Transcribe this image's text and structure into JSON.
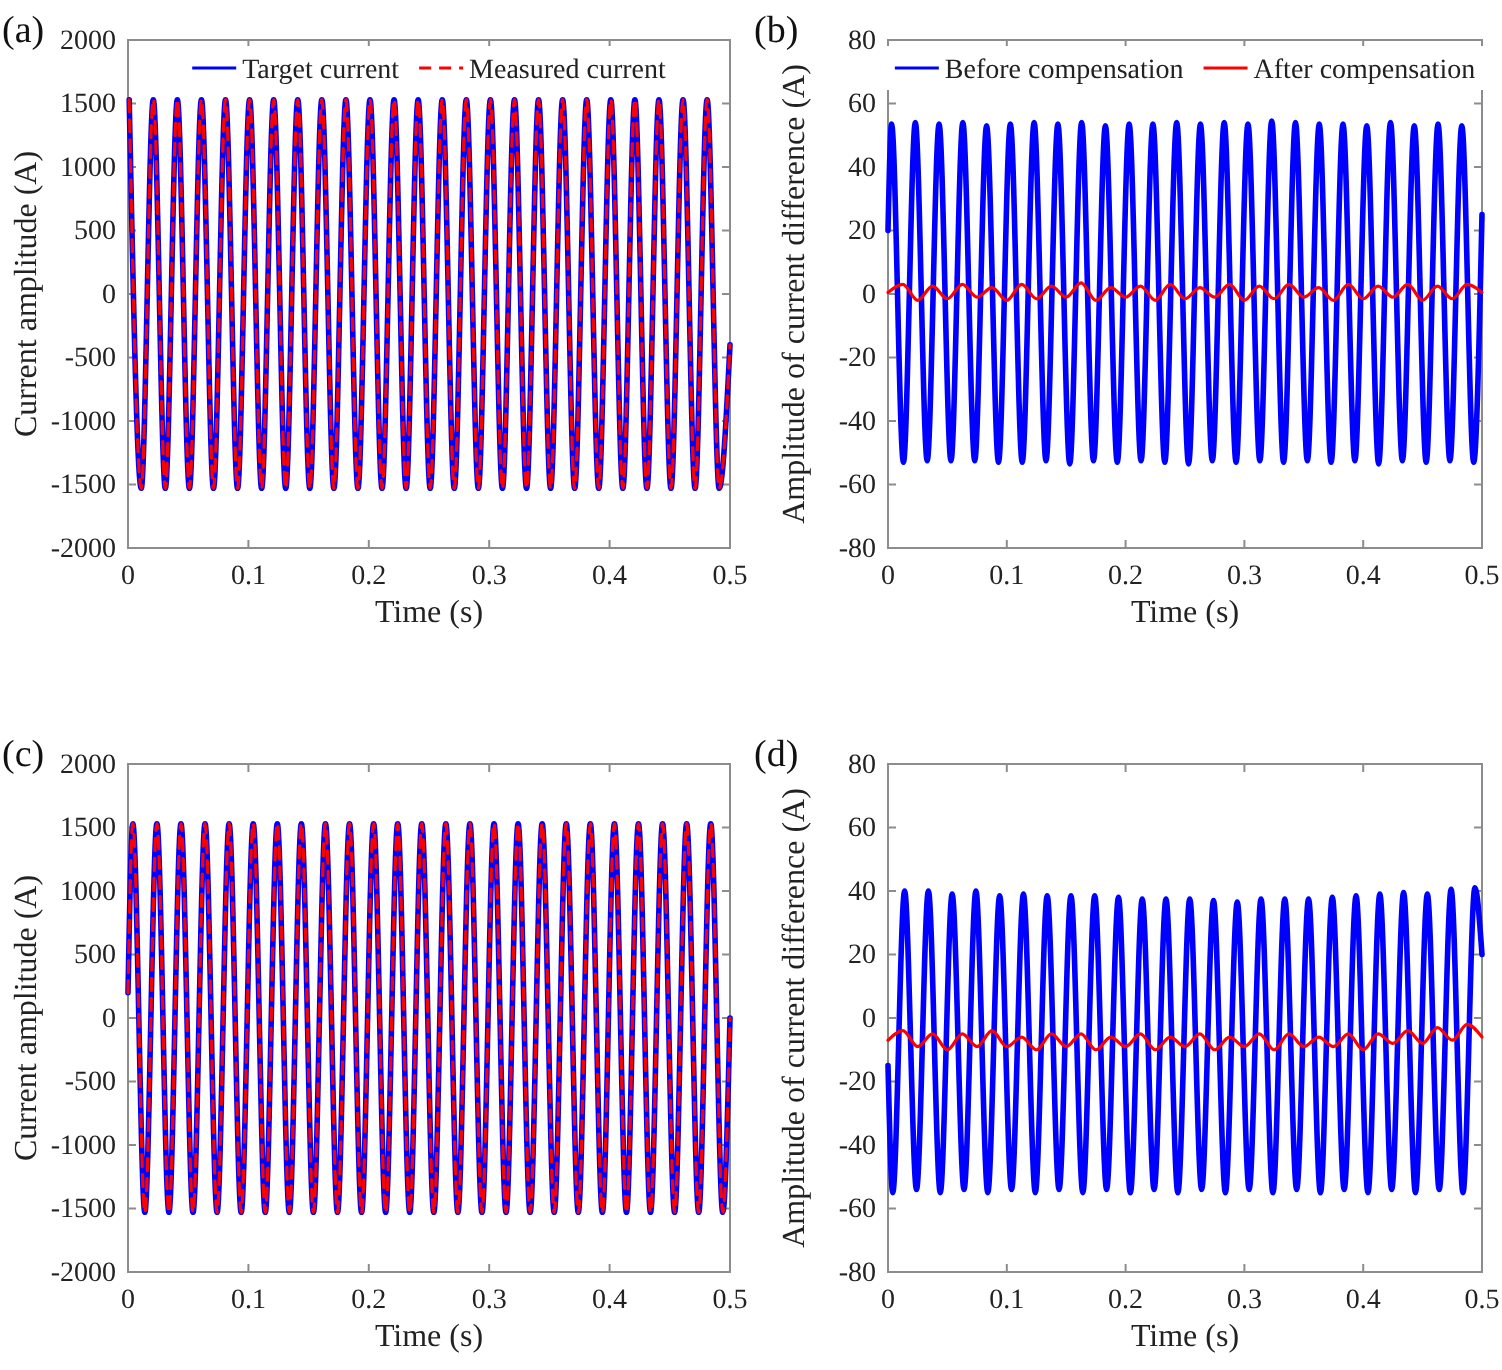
{
  "chart_data": [
    {
      "type": "line",
      "title": "(a)",
      "xlabel": "Time (s)",
      "ylabel": "Current amplitude (A)",
      "xlim": [
        0,
        0.5
      ],
      "xticks": [
        0,
        0.1,
        0.2,
        0.3,
        0.4,
        0.5
      ],
      "ylim": [
        -2000,
        2000
      ],
      "yticks": [
        -2000,
        -1500,
        -1000,
        -500,
        0,
        500,
        1000,
        1500,
        2000
      ],
      "legend": "top",
      "grid": false,
      "series": [
        {
          "name": "Target current",
          "color": "#0000ff",
          "line_style": "solid",
          "x": [
            0.001,
            0.011,
            0.021,
            0.031,
            0.041,
            0.051,
            0.061,
            0.071,
            0.081,
            0.091,
            0.101,
            0.111,
            0.121,
            0.131,
            0.141,
            0.151,
            0.161,
            0.171,
            0.181,
            0.191,
            0.201,
            0.211,
            0.221,
            0.231,
            0.241,
            0.251,
            0.261,
            0.271,
            0.281,
            0.291,
            0.301,
            0.311,
            0.321,
            0.331,
            0.341,
            0.351,
            0.361,
            0.371,
            0.381,
            0.391,
            0.401,
            0.411,
            0.421,
            0.431,
            0.441,
            0.451,
            0.461,
            0.471,
            0.481,
            0.491,
            0.5
          ],
          "values": [
            1530,
            -1530,
            1530,
            -1530,
            1530,
            -1530,
            1530,
            -1530,
            1530,
            -1530,
            1530,
            -1530,
            1530,
            -1530,
            1530,
            -1530,
            1530,
            -1530,
            1530,
            -1530,
            1530,
            -1530,
            1530,
            -1530,
            1530,
            -1530,
            1530,
            -1530,
            1530,
            -1530,
            1530,
            -1530,
            1530,
            -1530,
            1530,
            -1530,
            1530,
            -1530,
            1530,
            -1530,
            1530,
            -1530,
            1530,
            -1530,
            1530,
            -1530,
            1530,
            -1530,
            1530,
            -1530,
            -400
          ]
        },
        {
          "name": "Measured current",
          "color": "#ff0000",
          "line_style": "dashed",
          "x": [
            0.001,
            0.011,
            0.021,
            0.031,
            0.041,
            0.051,
            0.061,
            0.071,
            0.081,
            0.091,
            0.101,
            0.111,
            0.121,
            0.131,
            0.141,
            0.151,
            0.161,
            0.171,
            0.181,
            0.191,
            0.201,
            0.211,
            0.221,
            0.231,
            0.241,
            0.251,
            0.261,
            0.271,
            0.281,
            0.291,
            0.301,
            0.311,
            0.321,
            0.331,
            0.341,
            0.351,
            0.361,
            0.371,
            0.381,
            0.391,
            0.401,
            0.411,
            0.421,
            0.431,
            0.441,
            0.451,
            0.461,
            0.471,
            0.481,
            0.491,
            0.5
          ],
          "values": [
            1530,
            -1530,
            1530,
            -1530,
            1530,
            -1530,
            1530,
            -1530,
            1530,
            -1530,
            1530,
            -1530,
            1530,
            -1530,
            1530,
            -1530,
            1530,
            -1530,
            1530,
            -1530,
            1530,
            -1530,
            1530,
            -1530,
            1530,
            -1530,
            1530,
            -1530,
            1530,
            -1530,
            1530,
            -1530,
            1530,
            -1530,
            1530,
            -1530,
            1530,
            -1530,
            1530,
            -1530,
            1530,
            -1530,
            1530,
            -1530,
            1530,
            -1530,
            1530,
            -1530,
            1530,
            -1530,
            -400
          ]
        }
      ]
    },
    {
      "type": "line",
      "title": "(b)",
      "xlabel": "Time (s)",
      "ylabel": "Amplitude of current difference (A)",
      "xlim": [
        0,
        0.5
      ],
      "xticks": [
        0,
        0.1,
        0.2,
        0.3,
        0.4,
        0.5
      ],
      "ylim": [
        -80,
        80
      ],
      "yticks": [
        -80,
        -60,
        -40,
        -20,
        0,
        20,
        40,
        60,
        80
      ],
      "legend": "top",
      "grid": false,
      "series": [
        {
          "name": "Before compensation",
          "color": "#0000ff",
          "line_style": "solid",
          "x": [
            0,
            0.003,
            0.013,
            0.023,
            0.033,
            0.043,
            0.053,
            0.063,
            0.073,
            0.083,
            0.093,
            0.103,
            0.113,
            0.123,
            0.133,
            0.143,
            0.153,
            0.163,
            0.173,
            0.183,
            0.193,
            0.203,
            0.213,
            0.223,
            0.233,
            0.243,
            0.253,
            0.263,
            0.273,
            0.283,
            0.293,
            0.303,
            0.313,
            0.323,
            0.333,
            0.343,
            0.353,
            0.363,
            0.373,
            0.383,
            0.393,
            0.403,
            0.413,
            0.423,
            0.433,
            0.443,
            0.453,
            0.463,
            0.473,
            0.483,
            0.493,
            0.5
          ],
          "values": [
            20,
            53.5,
            -53,
            54,
            -52.5,
            53.5,
            -52.5,
            54,
            -52.5,
            53,
            -53,
            53.5,
            -53,
            54,
            -52.5,
            53.5,
            -53.5,
            54,
            -52.5,
            53,
            -53,
            53.5,
            -52.5,
            53.5,
            -53,
            54,
            -53.5,
            53.5,
            -52.5,
            54,
            -53,
            53.5,
            -52.5,
            54.5,
            -53,
            54,
            -52.5,
            53.5,
            -53,
            53.5,
            -52.5,
            53,
            -53.5,
            54,
            -52.5,
            53,
            -53,
            53.5,
            -52.5,
            53,
            -53,
            25
          ]
        },
        {
          "name": "After compensation",
          "color": "#ff0000",
          "line_style": "solid",
          "x": [
            0,
            0.0125,
            0.025,
            0.0375,
            0.05,
            0.0625,
            0.075,
            0.0875,
            0.1,
            0.1125,
            0.125,
            0.1375,
            0.15,
            0.1625,
            0.175,
            0.1875,
            0.2,
            0.2125,
            0.225,
            0.2375,
            0.25,
            0.2625,
            0.275,
            0.2875,
            0.3,
            0.3125,
            0.325,
            0.3375,
            0.35,
            0.3625,
            0.375,
            0.3875,
            0.4,
            0.4125,
            0.425,
            0.4375,
            0.45,
            0.4625,
            0.475,
            0.4875,
            0.5
          ],
          "values": [
            0.5,
            3,
            -2,
            2.5,
            -1.5,
            3,
            -1,
            2,
            -2,
            3,
            -1.5,
            2.5,
            -1,
            3.5,
            -2,
            2,
            -1,
            2.5,
            -2,
            3,
            -1.5,
            2,
            -1,
            3,
            -2,
            2.5,
            -1.5,
            3,
            -1,
            2,
            -2,
            3,
            -1.5,
            2.5,
            -1,
            3,
            -2,
            2.5,
            -1.5,
            3,
            0.5
          ]
        }
      ]
    },
    {
      "type": "line",
      "title": "(c)",
      "xlabel": "Time (s)",
      "ylabel": "Current amplitude (A)",
      "xlim": [
        0,
        0.5
      ],
      "xticks": [
        0,
        0.1,
        0.2,
        0.3,
        0.4,
        0.5
      ],
      "ylim": [
        -2000,
        2000
      ],
      "yticks": [
        -2000,
        -1500,
        -1000,
        -500,
        0,
        500,
        1000,
        1500,
        2000
      ],
      "legend": false,
      "grid": false,
      "series": [
        {
          "color": "#0000ff",
          "line_style": "solid",
          "x": [
            0,
            0.004,
            0.014,
            0.024,
            0.034,
            0.044,
            0.054,
            0.064,
            0.074,
            0.084,
            0.094,
            0.104,
            0.114,
            0.124,
            0.134,
            0.144,
            0.154,
            0.164,
            0.174,
            0.184,
            0.194,
            0.204,
            0.214,
            0.224,
            0.234,
            0.244,
            0.254,
            0.264,
            0.274,
            0.284,
            0.294,
            0.304,
            0.314,
            0.324,
            0.334,
            0.344,
            0.354,
            0.364,
            0.374,
            0.384,
            0.394,
            0.404,
            0.414,
            0.424,
            0.434,
            0.444,
            0.454,
            0.464,
            0.474,
            0.484,
            0.494,
            0.5
          ],
          "values": [
            200,
            1530,
            -1530,
            1530,
            -1530,
            1530,
            -1530,
            1530,
            -1530,
            1530,
            -1530,
            1530,
            -1530,
            1530,
            -1530,
            1530,
            -1530,
            1530,
            -1530,
            1530,
            -1530,
            1530,
            -1530,
            1530,
            -1530,
            1530,
            -1530,
            1530,
            -1530,
            1530,
            -1530,
            1530,
            -1530,
            1530,
            -1530,
            1530,
            -1530,
            1530,
            -1530,
            1530,
            -1530,
            1530,
            -1530,
            1530,
            -1530,
            1530,
            -1530,
            1530,
            -1530,
            1530,
            -1530,
            0
          ]
        },
        {
          "color": "#ff0000",
          "line_style": "dashed",
          "x": [
            0,
            0.004,
            0.014,
            0.024,
            0.034,
            0.044,
            0.054,
            0.064,
            0.074,
            0.084,
            0.094,
            0.104,
            0.114,
            0.124,
            0.134,
            0.144,
            0.154,
            0.164,
            0.174,
            0.184,
            0.194,
            0.204,
            0.214,
            0.224,
            0.234,
            0.244,
            0.254,
            0.264,
            0.274,
            0.284,
            0.294,
            0.304,
            0.314,
            0.324,
            0.334,
            0.344,
            0.354,
            0.364,
            0.374,
            0.384,
            0.394,
            0.404,
            0.414,
            0.424,
            0.434,
            0.444,
            0.454,
            0.464,
            0.474,
            0.484,
            0.494,
            0.5
          ],
          "values": [
            200,
            1530,
            -1530,
            1530,
            -1530,
            1530,
            -1530,
            1530,
            -1530,
            1530,
            -1530,
            1530,
            -1530,
            1530,
            -1530,
            1530,
            -1530,
            1530,
            -1530,
            1530,
            -1530,
            1530,
            -1530,
            1530,
            -1530,
            1530,
            -1530,
            1530,
            -1530,
            1530,
            -1530,
            1530,
            -1530,
            1530,
            -1530,
            1530,
            -1530,
            1530,
            -1530,
            1530,
            -1530,
            1530,
            -1530,
            1530,
            -1530,
            1530,
            -1530,
            1530,
            -1530,
            1530,
            -1530,
            0
          ]
        }
      ]
    },
    {
      "type": "line",
      "title": "(d)",
      "xlabel": "Time (s)",
      "ylabel": "Amplitude of current difference (A)",
      "xlim": [
        0,
        0.5
      ],
      "xticks": [
        0,
        0.1,
        0.2,
        0.3,
        0.4,
        0.5
      ],
      "ylim": [
        -80,
        80
      ],
      "yticks": [
        -80,
        -60,
        -40,
        -20,
        0,
        20,
        40,
        60,
        80
      ],
      "legend": false,
      "grid": false,
      "series": [
        {
          "color": "#0000ff",
          "line_style": "solid",
          "x": [
            0,
            0.004,
            0.014,
            0.024,
            0.034,
            0.044,
            0.054,
            0.064,
            0.074,
            0.084,
            0.094,
            0.104,
            0.114,
            0.124,
            0.134,
            0.144,
            0.154,
            0.164,
            0.174,
            0.184,
            0.194,
            0.204,
            0.214,
            0.224,
            0.234,
            0.244,
            0.254,
            0.264,
            0.274,
            0.284,
            0.294,
            0.304,
            0.314,
            0.324,
            0.334,
            0.344,
            0.354,
            0.364,
            0.374,
            0.384,
            0.394,
            0.404,
            0.414,
            0.424,
            0.434,
            0.444,
            0.454,
            0.464,
            0.474,
            0.484,
            0.494,
            0.5
          ],
          "values": [
            -15,
            -55,
            40,
            -54,
            40,
            -55,
            39,
            -54,
            40,
            -55,
            38.5,
            -54,
            39,
            -55,
            38.5,
            -54,
            38.5,
            -55,
            38.5,
            -54,
            38,
            -55,
            37.5,
            -54,
            37.5,
            -55,
            37.5,
            -54,
            37,
            -55,
            36.5,
            -54,
            37.5,
            -55,
            37.5,
            -54,
            37.5,
            -55,
            38,
            -54,
            38.5,
            -55,
            39,
            -54,
            39.5,
            -55,
            39,
            -54,
            40.5,
            -55,
            41,
            20
          ]
        },
        {
          "color": "#ff0000",
          "line_style": "solid",
          "x": [
            0,
            0.0125,
            0.025,
            0.0375,
            0.05,
            0.0625,
            0.075,
            0.0875,
            0.1,
            0.1125,
            0.125,
            0.1375,
            0.15,
            0.1625,
            0.175,
            0.1875,
            0.2,
            0.2125,
            0.225,
            0.2375,
            0.25,
            0.2625,
            0.275,
            0.2875,
            0.3,
            0.3125,
            0.325,
            0.3375,
            0.35,
            0.3625,
            0.375,
            0.3875,
            0.4,
            0.4125,
            0.425,
            0.4375,
            0.45,
            0.4625,
            0.475,
            0.4875,
            0.5
          ],
          "values": [
            -7,
            -4,
            -9,
            -5,
            -10,
            -5,
            -9,
            -4,
            -9,
            -6,
            -10,
            -5,
            -9,
            -5,
            -10,
            -6,
            -9,
            -5,
            -10,
            -6,
            -9,
            -5,
            -10,
            -6,
            -9,
            -5,
            -10,
            -5,
            -9,
            -6,
            -9,
            -5,
            -10,
            -5,
            -8,
            -4,
            -8,
            -3,
            -7,
            -2,
            -6
          ]
        }
      ]
    }
  ]
}
